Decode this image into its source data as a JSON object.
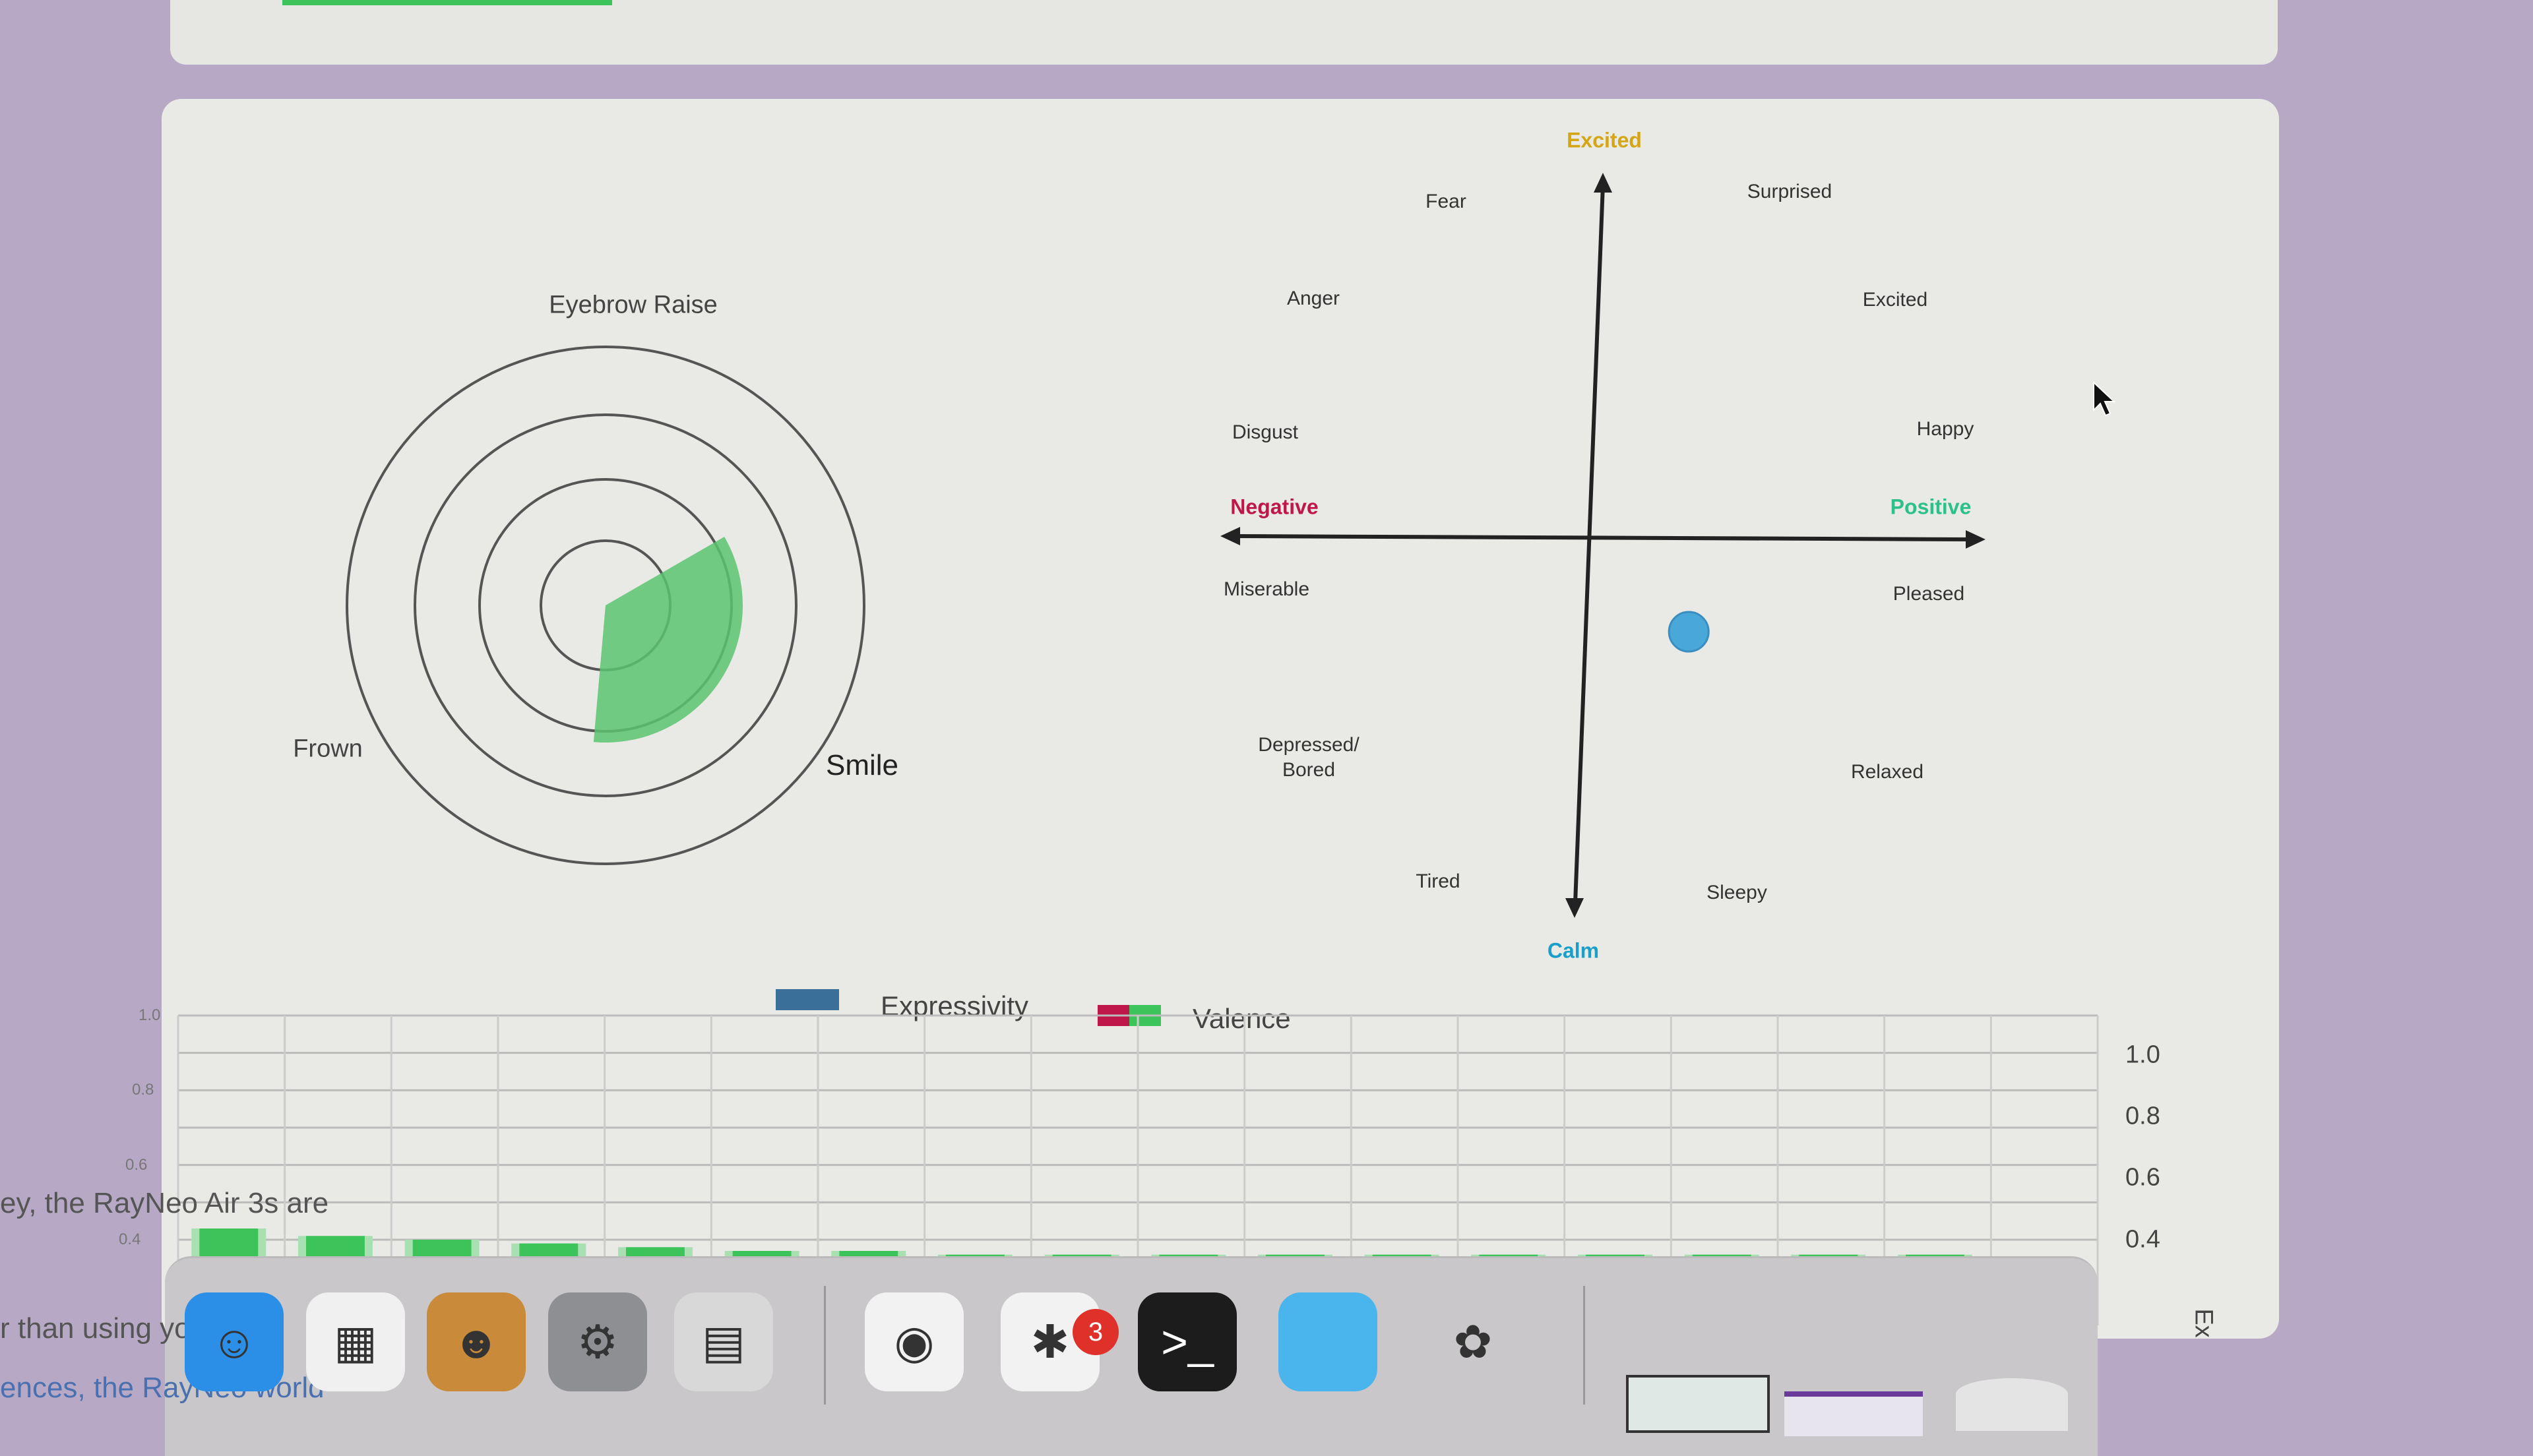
{
  "radar": {
    "labels": {
      "top": "Eyebrow Raise",
      "left": "Frown",
      "right": "Smile"
    },
    "fill_color": "#5cc46e"
  },
  "affect_grid": {
    "axis_labels": {
      "top": "Excited",
      "bottom": "Calm",
      "left": "Negative",
      "right": "Positive"
    },
    "axis_colors": {
      "top": "#d4a514",
      "bottom": "#1aa0c8",
      "left": "#c0174a",
      "right": "#2cc08c"
    },
    "emotions": [
      "Fear",
      "Surprised",
      "Anger",
      "Excited",
      "Disgust",
      "Happy",
      "Miserable",
      "Pleased",
      "Depressed/\nBored",
      "Relaxed",
      "Tired",
      "Sleepy"
    ],
    "current_point": {
      "valence": 0.13,
      "arousal": -0.25,
      "color": "#4aa8d8"
    }
  },
  "chart_data": {
    "type": "bar",
    "legend": [
      {
        "name": "Expressivity",
        "color": "#3a6f9a"
      },
      {
        "name": "Valence",
        "colors": [
          "#c0174a",
          "#3cc35a"
        ]
      }
    ],
    "left_ticks": [
      "1.0",
      "0.8",
      "0.6",
      "0.4"
    ],
    "right_ticks": [
      "1.0",
      "0.8",
      "0.6",
      "0.4"
    ],
    "ylim": [
      0.4,
      1.0
    ],
    "series": [
      {
        "name": "Valence",
        "color": "#3cc35a",
        "values": [
          0.43,
          0.41,
          0.4,
          0.39,
          0.38,
          0.37,
          0.37,
          0.36,
          0.36,
          0.36,
          0.36,
          0.36,
          0.36,
          0.36,
          0.36,
          0.36,
          0.36,
          0.35
        ]
      }
    ],
    "grid": true,
    "right_axis_partial_label": "Ex"
  },
  "background_text": [
    "ey, the RayNeo Air 3s are",
    "r than using yo",
    "ences, the RayNeo world"
  ],
  "dock": {
    "apps": [
      {
        "name": "finder-icon",
        "glyph": "☺",
        "bg": "#2b8fe8"
      },
      {
        "name": "launchpad-icon",
        "glyph": "▦",
        "bg": "#f0f0f0"
      },
      {
        "name": "contacts-icon",
        "glyph": "☻",
        "bg": "#c98a3a"
      },
      {
        "name": "system-settings-icon",
        "glyph": "⚙",
        "bg": "#8d8f93"
      },
      {
        "name": "calculator-icon",
        "glyph": "▤",
        "bg": "#d8d8d8"
      },
      {
        "name": "chrome-icon",
        "glyph": "◉",
        "bg": "#f2f2f2"
      },
      {
        "name": "slack-icon",
        "glyph": "✱",
        "bg": "#f2f2f2"
      },
      {
        "name": "terminal-icon",
        "glyph": ">_",
        "bg": "#1c1c1c"
      },
      {
        "name": "folder-icon",
        "glyph": "",
        "bg": "#4ab4ec"
      },
      {
        "name": "app-icon",
        "glyph": "✿",
        "bg": "transparent"
      }
    ],
    "slack_badge": "3"
  }
}
